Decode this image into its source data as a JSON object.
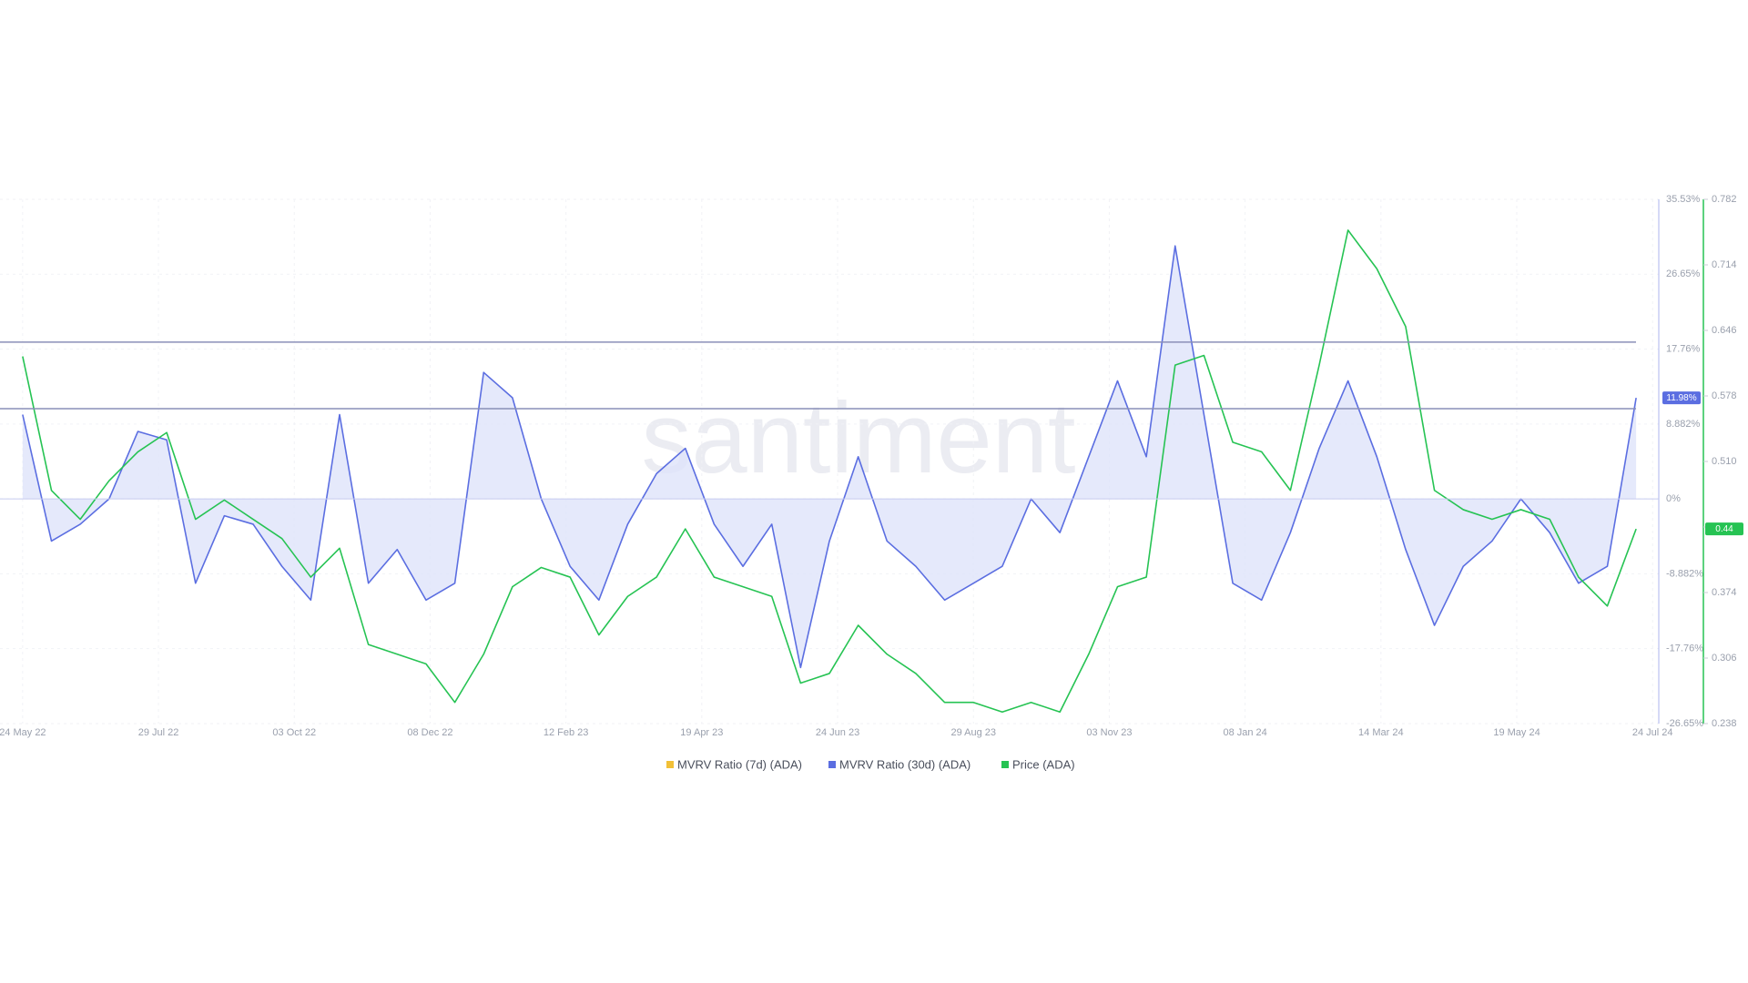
{
  "chart_data": {
    "type": "line",
    "watermark": "santiment",
    "x": [
      "2022-05-24",
      "2022-06-07",
      "2022-06-21",
      "2022-07-05",
      "2022-07-19",
      "2022-08-02",
      "2022-08-16",
      "2022-08-30",
      "2022-09-13",
      "2022-09-27",
      "2022-10-11",
      "2022-10-25",
      "2022-11-08",
      "2022-11-22",
      "2022-12-06",
      "2022-12-20",
      "2023-01-03",
      "2023-01-17",
      "2023-01-31",
      "2023-02-14",
      "2023-02-28",
      "2023-03-14",
      "2023-03-28",
      "2023-04-11",
      "2023-04-25",
      "2023-05-09",
      "2023-05-23",
      "2023-06-06",
      "2023-06-20",
      "2023-07-04",
      "2023-07-18",
      "2023-08-01",
      "2023-08-15",
      "2023-08-29",
      "2023-09-12",
      "2023-09-26",
      "2023-10-10",
      "2023-10-24",
      "2023-11-07",
      "2023-11-21",
      "2023-12-05",
      "2023-12-19",
      "2024-01-02",
      "2024-01-16",
      "2024-01-30",
      "2024-02-13",
      "2024-02-27",
      "2024-03-12",
      "2024-03-26",
      "2024-04-09",
      "2024-04-23",
      "2024-05-07",
      "2024-05-21",
      "2024-06-04",
      "2024-06-18",
      "2024-07-02",
      "2024-07-16"
    ],
    "series": [
      {
        "name": "MVRV Ratio (7d) (ADA)",
        "color": "#f2c037",
        "values": [
          null,
          null,
          null,
          null,
          null,
          null,
          null,
          null,
          null,
          null,
          null,
          null,
          null,
          null,
          null,
          null,
          null,
          null,
          null,
          null,
          null,
          null,
          null,
          null,
          null,
          null,
          null,
          null,
          null,
          null,
          null,
          null,
          null,
          null,
          null,
          null,
          null,
          null,
          null,
          null,
          null,
          null,
          null,
          null,
          null,
          null,
          null,
          null,
          null,
          null,
          null,
          null,
          null,
          null,
          null,
          null,
          null
        ]
      },
      {
        "name": "MVRV Ratio (30d) (ADA)",
        "color": "#5b6ee1",
        "fill": "#dfe3fa",
        "last_label": "11.98%",
        "values": [
          10,
          -5,
          -3,
          0,
          8,
          7,
          -10,
          -2,
          -3,
          -8,
          -12,
          10,
          -10,
          -6,
          -12,
          -10,
          15,
          12,
          0,
          -8,
          -12,
          -3,
          3,
          6,
          -3,
          -8,
          -3,
          -20,
          -5,
          5,
          -5,
          -8,
          -12,
          -10,
          -8,
          0,
          -4,
          5,
          14,
          5,
          30,
          10,
          -10,
          -12,
          -4,
          6,
          14,
          5,
          -6,
          -15,
          -8,
          -5,
          0,
          -4,
          -10,
          -8,
          11.98
        ]
      },
      {
        "name": "Price (ADA)",
        "color": "#26c353",
        "axis": "y2",
        "last_label": "0.44",
        "values": [
          0.619,
          0.48,
          0.45,
          0.49,
          0.52,
          0.54,
          0.45,
          0.47,
          0.45,
          0.43,
          0.39,
          0.42,
          0.32,
          0.31,
          0.3,
          0.26,
          0.31,
          0.38,
          0.4,
          0.39,
          0.33,
          0.37,
          0.39,
          0.44,
          0.39,
          0.38,
          0.37,
          0.28,
          0.29,
          0.34,
          0.31,
          0.29,
          0.26,
          0.26,
          0.25,
          0.26,
          0.25,
          0.31,
          0.38,
          0.39,
          0.61,
          0.62,
          0.53,
          0.52,
          0.48,
          0.61,
          0.75,
          0.71,
          0.65,
          0.48,
          0.46,
          0.45,
          0.46,
          0.45,
          0.39,
          0.36,
          0.44
        ]
      }
    ],
    "xlim": [
      "2022-05-13",
      "2024-07-27"
    ],
    "xticks": [
      {
        "value": "2022-05-24",
        "label": "24 May 22"
      },
      {
        "value": "2022-07-29",
        "label": "29 Jul 22"
      },
      {
        "value": "2022-10-03",
        "label": "03 Oct 22"
      },
      {
        "value": "2022-12-08",
        "label": "08 Dec 22"
      },
      {
        "value": "2023-02-12",
        "label": "12 Feb 23"
      },
      {
        "value": "2023-04-19",
        "label": "19 Apr 23"
      },
      {
        "value": "2023-06-24",
        "label": "24 Jun 23"
      },
      {
        "value": "2023-08-29",
        "label": "29 Aug 23"
      },
      {
        "value": "2023-11-03",
        "label": "03 Nov 23"
      },
      {
        "value": "2024-01-08",
        "label": "08 Jan 24"
      },
      {
        "value": "2024-03-14",
        "label": "14 Mar 24"
      },
      {
        "value": "2024-05-19",
        "label": "19 May 24"
      },
      {
        "value": "2024-07-24",
        "label": "24 Jul 24"
      }
    ],
    "ylim": [
      -26.65,
      35.53
    ],
    "yticks": [
      {
        "value": 35.53,
        "label": "35.53%"
      },
      {
        "value": 26.65,
        "label": "26.65%"
      },
      {
        "value": 17.76,
        "label": "17.76%"
      },
      {
        "value": 8.882,
        "label": "8.882%"
      },
      {
        "value": 0,
        "label": "0%"
      },
      {
        "value": -8.882,
        "label": "-8.882%"
      },
      {
        "value": -17.76,
        "label": "-17.76%"
      },
      {
        "value": -26.65,
        "label": "-26.65%"
      }
    ],
    "y2lim": [
      0.238,
      0.782
    ],
    "y2ticks": [
      0.782,
      0.714,
      0.646,
      0.578,
      {
        "value": 0.51,
        "label": "0.510"
      },
      0.442,
      0.374,
      0.306,
      0.238
    ],
    "reference_lines": [
      18.6,
      10.7
    ],
    "grid": true
  }
}
